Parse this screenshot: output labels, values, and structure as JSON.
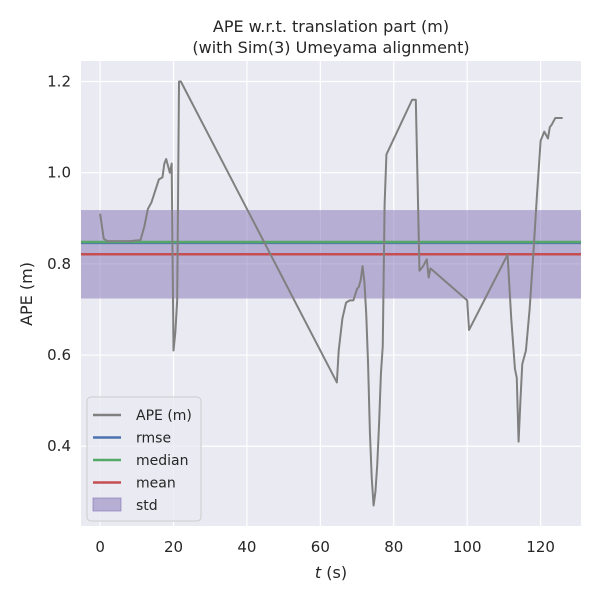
{
  "chart_data": {
    "type": "line",
    "title": [
      "APE w.r.t. translation part (m)",
      "(with Sim(3) Umeyama alignment)"
    ],
    "xlabel": "t (s)",
    "ylabel": "APE (m)",
    "xlim": [
      -5.2,
      131
    ],
    "ylim": [
      0.225,
      1.245
    ],
    "xticks": [
      0,
      20,
      40,
      60,
      80,
      100,
      120
    ],
    "yticks": [
      0.4,
      0.6,
      0.8,
      1.0,
      1.2
    ],
    "ytick_labels": [
      "0.4",
      "0.6",
      "0.8",
      "1.0",
      "1.2"
    ],
    "grid": true,
    "legend_position": "lower-left",
    "colors": {
      "background": "#eaeaf2",
      "grid": "#ffffff",
      "ape": "#808080",
      "rmse": "#4c72b0",
      "median": "#55a868",
      "mean": "#c44e52",
      "std": "#8172b3"
    },
    "series": [
      {
        "name": "APE (m)",
        "x": [
          0,
          1,
          2,
          5,
          8,
          11,
          12,
          13,
          14,
          15,
          16,
          17,
          17.5,
          18,
          19,
          19.5,
          20,
          20.5,
          21,
          21.5,
          22,
          64.5,
          65,
          66,
          67,
          68,
          69,
          70,
          70.5,
          71,
          71.5,
          72,
          72.5,
          73,
          73.5,
          74,
          74.5,
          75,
          75.5,
          76,
          76.5,
          77,
          77.5,
          78,
          85,
          86,
          87,
          88,
          89,
          89.5,
          90,
          100,
          100.5,
          111,
          112,
          113,
          113.5,
          114,
          114.5,
          115,
          116,
          117,
          118,
          119,
          120,
          121,
          122,
          122.5,
          123,
          124,
          125,
          126
        ],
        "y": [
          0.91,
          0.855,
          0.85,
          0.85,
          0.85,
          0.852,
          0.88,
          0.92,
          0.935,
          0.96,
          0.985,
          0.99,
          1.02,
          1.03,
          1.0,
          1.02,
          0.61,
          0.65,
          0.72,
          1.2,
          1.2,
          0.54,
          0.61,
          0.68,
          0.715,
          0.72,
          0.72,
          0.745,
          0.75,
          0.765,
          0.795,
          0.76,
          0.69,
          0.58,
          0.43,
          0.33,
          0.27,
          0.3,
          0.36,
          0.45,
          0.56,
          0.62,
          0.93,
          1.04,
          1.16,
          1.16,
          0.785,
          0.795,
          0.81,
          0.77,
          0.79,
          0.72,
          0.655,
          0.82,
          0.68,
          0.57,
          0.55,
          0.41,
          0.5,
          0.58,
          0.61,
          0.7,
          0.82,
          0.95,
          1.07,
          1.09,
          1.075,
          1.1,
          1.105,
          1.12,
          1.12,
          1.12
        ]
      }
    ],
    "reference_lines": [
      {
        "name": "rmse",
        "value": 0.846
      },
      {
        "name": "median",
        "value": 0.848
      },
      {
        "name": "mean",
        "value": 0.821
      }
    ],
    "std_band": {
      "name": "std",
      "low": 0.724,
      "high": 0.918
    },
    "legend": [
      "APE (m)",
      "rmse",
      "median",
      "mean",
      "std"
    ]
  }
}
